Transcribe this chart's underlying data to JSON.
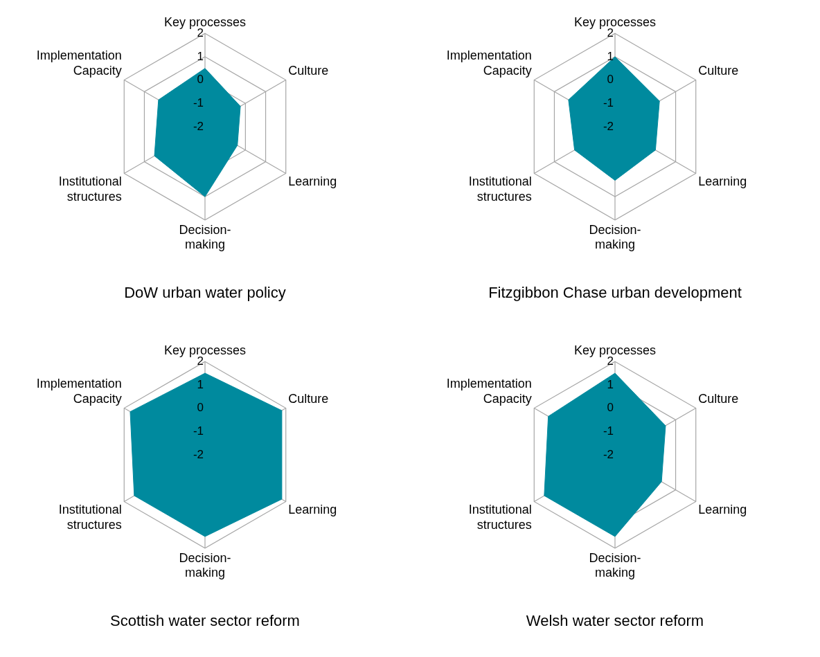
{
  "chart_data": [
    {
      "type": "radar",
      "title": "DoW urban water policy",
      "categories": [
        "Key processes",
        "Culture",
        "Learning",
        "Decision-making",
        "Institutional structures",
        "Implementation Capacity"
      ],
      "series": [
        {
          "color": "#008a9e",
          "values": [
            0.5,
            -0.25,
            -0.4,
            1.0,
            0.5,
            0.3
          ]
        }
      ],
      "ylim": [
        -2,
        2
      ],
      "yticks": [
        -2,
        -1,
        0,
        1,
        2
      ],
      "grid": true
    },
    {
      "type": "radar",
      "title": "Fitzgibbon Chase urban development",
      "categories": [
        "Key processes",
        "Culture",
        "Learning",
        "Decision-making",
        "Institutional structures",
        "Implementation Capacity"
      ],
      "series": [
        {
          "color": "#008a9e",
          "values": [
            1.0,
            0.2,
            0.0,
            0.3,
            0.0,
            0.3
          ]
        }
      ],
      "ylim": [
        -2,
        2
      ],
      "yticks": [
        -2,
        -1,
        0,
        1,
        2
      ],
      "grid": true
    },
    {
      "type": "radar",
      "title": "Scottish water sector reform",
      "categories": [
        "Key processes",
        "Culture",
        "Learning",
        "Decision-making",
        "Institutional structures",
        "Implementation Capacity"
      ],
      "series": [
        {
          "color": "#008a9e",
          "values": [
            1.5,
            1.8,
            1.8,
            1.5,
            1.5,
            1.7
          ]
        }
      ],
      "ylim": [
        -2,
        2
      ],
      "yticks": [
        -2,
        -1,
        0,
        1,
        2
      ],
      "grid": true
    },
    {
      "type": "radar",
      "title": "Welsh water sector reform",
      "categories": [
        "Key processes",
        "Culture",
        "Learning",
        "Decision-making",
        "Institutional structures",
        "Implementation Capacity"
      ],
      "series": [
        {
          "color": "#008a9e",
          "values": [
            1.5,
            0.5,
            0.3,
            1.5,
            1.5,
            1.3
          ]
        }
      ],
      "ylim": [
        -2,
        2
      ],
      "yticks": [
        -2,
        -1,
        0,
        1,
        2
      ],
      "grid": true
    }
  ]
}
